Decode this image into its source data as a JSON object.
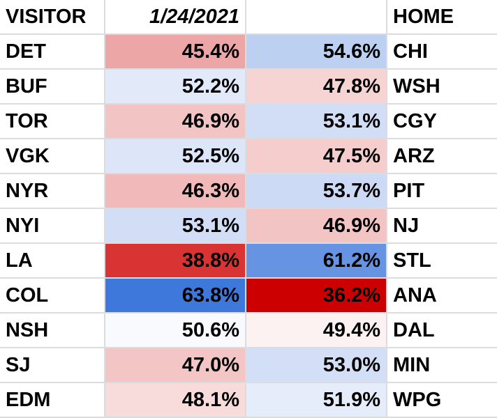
{
  "header": {
    "visitor_label": "VISITOR",
    "date": "1/24/2021",
    "blank": "",
    "home_label": "HOME"
  },
  "games": [
    {
      "visitor": "DET",
      "visitor_pct": "45.4%",
      "home_pct": "54.6%",
      "home": "CHI",
      "visitor_color": "#eda6a6",
      "home_color": "#bcd0f2"
    },
    {
      "visitor": "BUF",
      "visitor_pct": "52.2%",
      "home_pct": "47.8%",
      "home": "WSH",
      "visitor_color": "#e2eaf9",
      "home_color": "#f6d4d4"
    },
    {
      "visitor": "TOR",
      "visitor_pct": "46.9%",
      "home_pct": "53.1%",
      "home": "CGY",
      "visitor_color": "#f3c4c4",
      "home_color": "#d2def6"
    },
    {
      "visitor": "VGK",
      "visitor_pct": "52.5%",
      "home_pct": "47.5%",
      "home": "ARZ",
      "visitor_color": "#dce6f8",
      "home_color": "#f5cdcd"
    },
    {
      "visitor": "NYR",
      "visitor_pct": "46.3%",
      "home_pct": "53.7%",
      "home": "PIT",
      "visitor_color": "#f1b9b9",
      "home_color": "#ccdaf5"
    },
    {
      "visitor": "NYI",
      "visitor_pct": "53.1%",
      "home_pct": "46.9%",
      "home": "NJ",
      "visitor_color": "#d2def6",
      "home_color": "#f3c4c4"
    },
    {
      "visitor": "LA",
      "visitor_pct": "38.8%",
      "home_pct": "61.2%",
      "home": "STL",
      "visitor_color": "#d93434",
      "home_color": "#6694e2"
    },
    {
      "visitor": "COL",
      "visitor_pct": "63.8%",
      "home_pct": "36.2%",
      "home": "ANA",
      "visitor_color": "#3e78da",
      "home_color": "#cc0000"
    },
    {
      "visitor": "NSH",
      "visitor_pct": "50.6%",
      "home_pct": "49.4%",
      "home": "DAL",
      "visitor_color": "#f8fafe",
      "home_color": "#fdf2f2"
    },
    {
      "visitor": "SJ",
      "visitor_pct": "47.0%",
      "home_pct": "53.0%",
      "home": "MIN",
      "visitor_color": "#f3c5c5",
      "home_color": "#d3dff6"
    },
    {
      "visitor": "EDM",
      "visitor_pct": "48.1%",
      "home_pct": "51.9%",
      "home": "WPG",
      "visitor_color": "#f8dcdc",
      "home_color": "#e5ecfa"
    }
  ]
}
